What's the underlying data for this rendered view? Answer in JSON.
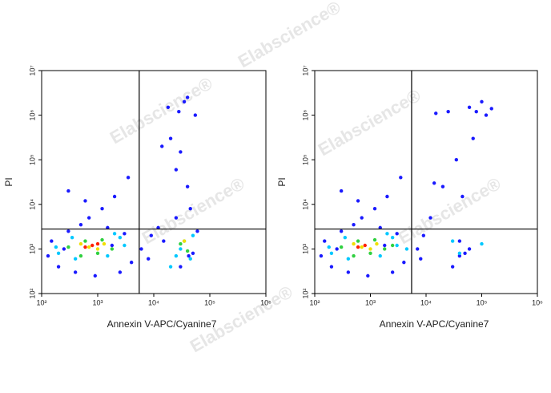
{
  "watermark": "Elabscience®",
  "chart_data": [
    {
      "type": "scatter",
      "xlabel": "Annexin V-APC/Cyanine7",
      "ylabel": "PI",
      "log_x": true,
      "log_y": true,
      "xlim": [
        100,
        1000000
      ],
      "ylim": [
        100,
        10000000
      ],
      "xticks": [
        {
          "value": 100,
          "label": "10²"
        },
        {
          "value": 1000,
          "label": "10³"
        },
        {
          "value": 10000,
          "label": "10⁴"
        },
        {
          "value": 100000,
          "label": "10⁵"
        },
        {
          "value": 1000000,
          "label": "10⁶"
        }
      ],
      "yticks": [
        {
          "value": 100,
          "label": "10²"
        },
        {
          "value": 1000,
          "label": "10³"
        },
        {
          "value": 10000,
          "label": "10⁴"
        },
        {
          "value": 100000,
          "label": "10⁵"
        },
        {
          "value": 1000000,
          "label": "10⁶"
        },
        {
          "value": 10000000,
          "label": "10⁷"
        }
      ],
      "gate": {
        "x": 5500,
        "y": 2800
      },
      "series": [
        {
          "color": "#1a1aff",
          "x": [
            130,
            200,
            300,
            500,
            1500,
            3000,
            4000,
            2500,
            150,
            250,
            700,
            1200,
            6000,
            9000,
            15000,
            30000,
            50000,
            60000,
            40000,
            25000,
            12000,
            20000,
            30000,
            45000,
            35000,
            18000,
            28000,
            40000,
            55000,
            900,
            400,
            2000,
            3500,
            8000,
            14000,
            25000,
            42000,
            300,
            1800,
            600
          ],
          "y": [
            700,
            400,
            2500,
            3500,
            3000,
            2200,
            500,
            300,
            1500,
            1000,
            5000,
            8000,
            1000,
            2000,
            1500,
            400,
            800,
            2500,
            25000,
            60000,
            3000,
            300000,
            150000,
            8000,
            2000000,
            1500000,
            1200000,
            2500000,
            1000000,
            250,
            300,
            15000,
            40000,
            600,
            200000,
            5000,
            700,
            20000,
            1200,
            12000
          ]
        },
        {
          "color": "#00c8ff",
          "x": [
            200,
            350,
            1500,
            2500,
            180,
            3000,
            25000,
            35000,
            50000,
            20000,
            30000,
            45000,
            400,
            2000
          ],
          "y": [
            800,
            1800,
            700,
            1800,
            1100,
            1200,
            700,
            1500,
            2000,
            400,
            1000,
            600,
            600,
            2200
          ]
        },
        {
          "color": "#30d040",
          "x": [
            300,
            500,
            1800,
            1200,
            30000,
            40000,
            600,
            1000
          ],
          "y": [
            1100,
            700,
            1000,
            1600,
            1300,
            900,
            1500,
            800
          ]
        },
        {
          "color": "#f0e000",
          "x": [
            500,
            1000,
            700,
            35000,
            1300
          ],
          "y": [
            1300,
            1000,
            1100,
            1500,
            1300
          ]
        },
        {
          "color": "#ff2000",
          "x": [
            800,
            600,
            1000
          ],
          "y": [
            1200,
            1100,
            1300
          ]
        }
      ]
    },
    {
      "type": "scatter",
      "xlabel": "Annexin V-APC/Cyanine7",
      "ylabel": "PI",
      "log_x": true,
      "log_y": true,
      "xlim": [
        100,
        1000000
      ],
      "ylim": [
        100,
        10000000
      ],
      "xticks": [
        {
          "value": 100,
          "label": "10²"
        },
        {
          "value": 1000,
          "label": "10³"
        },
        {
          "value": 10000,
          "label": "10⁴"
        },
        {
          "value": 100000,
          "label": "10⁵"
        },
        {
          "value": 1000000,
          "label": "10⁶"
        }
      ],
      "yticks": [
        {
          "value": 100,
          "label": "10²"
        },
        {
          "value": 1000,
          "label": "10³"
        },
        {
          "value": 10000,
          "label": "10⁴"
        },
        {
          "value": 100000,
          "label": "10⁵"
        },
        {
          "value": 1000000,
          "label": "10⁶"
        },
        {
          "value": 10000000,
          "label": "10⁷"
        }
      ],
      "gate": {
        "x": 5500,
        "y": 2800
      },
      "series": [
        {
          "color": "#1a1aff",
          "x": [
            130,
            200,
            300,
            500,
            1500,
            3000,
            4000,
            2500,
            150,
            250,
            700,
            1200,
            7000,
            9000,
            12000,
            30000,
            50000,
            40000,
            45000,
            20000,
            15000,
            25000,
            35000,
            60000,
            80000,
            100000,
            120000,
            150000,
            70000,
            900,
            400,
            2000,
            3500,
            8000,
            14000,
            40000,
            60000,
            300,
            1800,
            600
          ],
          "y": [
            700,
            400,
            2500,
            3500,
            3000,
            2200,
            500,
            300,
            1500,
            1000,
            5000,
            8000,
            1000,
            2000,
            5000,
            400,
            800,
            1500,
            15000,
            25000,
            1100000,
            1200000,
            100000,
            1500000,
            1200000,
            2000000,
            1000000,
            1400000,
            300000,
            250,
            300,
            15000,
            40000,
            600,
            30000,
            700,
            1000,
            20000,
            1200,
            12000
          ]
        },
        {
          "color": "#00c8ff",
          "x": [
            200,
            350,
            1500,
            2500,
            180,
            3000,
            40000,
            30000,
            100000,
            400,
            2000,
            4500
          ],
          "y": [
            800,
            1800,
            700,
            1800,
            1100,
            1200,
            800,
            1500,
            1300,
            600,
            2200,
            1000
          ]
        },
        {
          "color": "#30d040",
          "x": [
            300,
            500,
            1800,
            1200,
            600,
            1000,
            2500
          ],
          "y": [
            1100,
            700,
            1000,
            1600,
            1500,
            800,
            1200
          ]
        },
        {
          "color": "#f0e000",
          "x": [
            500,
            1000,
            700,
            1300
          ],
          "y": [
            1300,
            1000,
            1100,
            1300
          ]
        },
        {
          "color": "#ff2000",
          "x": [
            800,
            600
          ],
          "y": [
            1200,
            1100
          ]
        }
      ]
    }
  ]
}
